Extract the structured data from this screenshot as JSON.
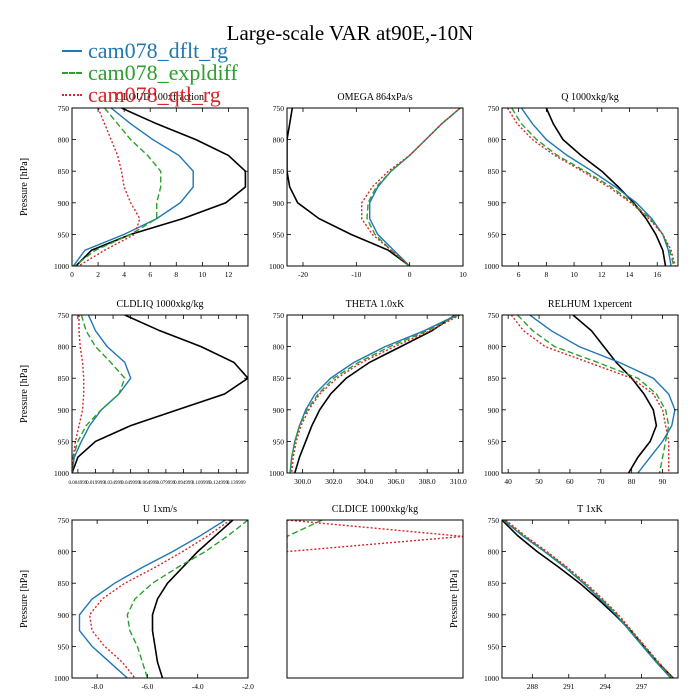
{
  "figure": {
    "title": "Large-scale VAR at90E,-10N"
  },
  "legend": {
    "placement": "top-left",
    "entries": [
      {
        "name": "cam078_dflt_rg",
        "color": "#1f77b4",
        "dash": "solid"
      },
      {
        "name": "cam078_expldiff",
        "color": "#2ca02c",
        "dash": "dashed"
      },
      {
        "name": "cam078_qtl_rg",
        "color": "#d62728",
        "dash": "dotted"
      }
    ]
  },
  "chart_data": [
    {
      "type": "line",
      "title": "CLOUD 100xfraction",
      "ylabel": "Pressure [hPa]",
      "ylim": [
        1000,
        750
      ],
      "yticks": [
        750,
        800,
        850,
        900,
        950,
        1000
      ],
      "xlim": [
        0,
        13.5
      ],
      "xticks": [
        0,
        2,
        4,
        6,
        8,
        10,
        12
      ],
      "xticklabels": [
        "0",
        "2",
        "4",
        "6",
        "8",
        "10",
        "12"
      ],
      "pressure": [
        750,
        775,
        800,
        825,
        850,
        875,
        900,
        925,
        950,
        975,
        1000
      ],
      "series": [
        {
          "color": "#000000",
          "dash": "solid",
          "values": [
            3.8,
            6.5,
            9.5,
            12,
            13.3,
            13.3,
            11.8,
            8.5,
            4.5,
            1.5,
            0.3
          ]
        },
        {
          "color": "#1f77b4",
          "dash": "solid",
          "values": [
            3,
            4.5,
            6.2,
            8.2,
            9.3,
            9.3,
            8.3,
            6.5,
            4,
            1,
            0.1
          ]
        },
        {
          "color": "#2ca02c",
          "dash": "dashed",
          "values": [
            2.5,
            3.5,
            4.5,
            5.8,
            6.8,
            6.8,
            6.5,
            6.5,
            4.5,
            1.8,
            0.2
          ]
        },
        {
          "color": "#d62728",
          "dash": "dotted",
          "values": [
            2,
            2.5,
            3,
            3.5,
            3.8,
            4,
            4.5,
            5.2,
            4.8,
            2.5,
            0.5
          ]
        }
      ],
      "grid": false
    },
    {
      "type": "line",
      "title": "OMEGA  864xPa/s",
      "ylabel": "",
      "ylim": [
        1000,
        750
      ],
      "yticks": [
        750,
        800,
        850,
        900,
        950,
        1000
      ],
      "xlim": [
        -23,
        10
      ],
      "xticks": [
        -20,
        -10,
        0,
        10
      ],
      "xticklabels": [
        "-20",
        "-10",
        "0",
        "10"
      ],
      "pressure": [
        750,
        775,
        800,
        825,
        850,
        875,
        900,
        925,
        950,
        975,
        1000
      ],
      "series": [
        {
          "color": "#000000",
          "dash": "solid",
          "values": [
            -22,
            -22.5,
            -23,
            -23,
            -23,
            -22.5,
            -21,
            -17,
            -11,
            -4,
            0
          ]
        },
        {
          "color": "#1f77b4",
          "dash": "solid",
          "values": [
            9.5,
            6,
            3,
            0,
            -3.5,
            -6,
            -7.5,
            -7.5,
            -6,
            -3,
            0
          ]
        },
        {
          "color": "#2ca02c",
          "dash": "dashed",
          "values": [
            9.5,
            6,
            3,
            0,
            -3.5,
            -6.3,
            -7.8,
            -8,
            -6.5,
            -3.5,
            0
          ]
        },
        {
          "color": "#d62728",
          "dash": "dotted",
          "values": [
            9.5,
            6,
            3,
            0,
            -4,
            -7,
            -9,
            -9,
            -7,
            -3.5,
            0
          ]
        }
      ],
      "grid": false
    },
    {
      "type": "line",
      "title": "Q  1000xkg/kg",
      "ylabel": "",
      "ylim": [
        1000,
        750
      ],
      "yticks": [
        750,
        800,
        850,
        900,
        950,
        1000
      ],
      "xlim": [
        4.8,
        17.5
      ],
      "xticks": [
        6,
        8,
        10,
        12,
        14,
        16
      ],
      "xticklabels": [
        "6",
        "8",
        "10",
        "12",
        "14",
        "16"
      ],
      "pressure": [
        750,
        775,
        800,
        825,
        850,
        875,
        900,
        925,
        950,
        975,
        1000
      ],
      "series": [
        {
          "color": "#000000",
          "dash": "solid",
          "values": [
            8,
            8.5,
            9.2,
            10.5,
            12,
            13.2,
            14.3,
            15.2,
            15.9,
            16.4,
            16.6
          ]
        },
        {
          "color": "#1f77b4",
          "dash": "solid",
          "values": [
            6.2,
            7,
            8,
            9.5,
            11.3,
            13,
            14.5,
            15.6,
            16.4,
            16.8,
            17
          ]
        },
        {
          "color": "#2ca02c",
          "dash": "dashed",
          "values": [
            5.5,
            6.2,
            7.3,
            8.8,
            10.8,
            12.7,
            14.2,
            15.5,
            16.4,
            16.9,
            17.2
          ]
        },
        {
          "color": "#d62728",
          "dash": "dotted",
          "values": [
            5.2,
            5.9,
            7,
            8.6,
            10.6,
            12.5,
            14.1,
            15.4,
            16.4,
            17,
            17.3
          ]
        }
      ],
      "grid": false
    },
    {
      "type": "line",
      "title": "CLDLIQ  1000xkg/kg",
      "ylabel": "Pressure [hPa]",
      "ylim": [
        1000,
        750
      ],
      "yticks": [
        750,
        800,
        850,
        900,
        950,
        1000
      ],
      "xlim": [
        0,
        0.15
      ],
      "xticks": [
        0.005,
        0.02,
        0.035,
        0.05,
        0.065,
        0.08,
        0.095,
        0.11,
        0.125,
        0.14
      ],
      "xticklabels": [
        "0.004999",
        "0.019999",
        "0.034999",
        "0.049999",
        "0.064999",
        "0.079999",
        "0.094999",
        "0.109999",
        "0.124999",
        "0.139999"
      ],
      "pressure": [
        750,
        775,
        800,
        825,
        850,
        875,
        900,
        925,
        950,
        975,
        1000
      ],
      "series": [
        {
          "color": "#000000",
          "dash": "solid",
          "values": [
            0.045,
            0.075,
            0.11,
            0.138,
            0.15,
            0.13,
            0.09,
            0.05,
            0.02,
            0.005,
            0
          ]
        },
        {
          "color": "#1f77b4",
          "dash": "solid",
          "values": [
            0.014,
            0.02,
            0.03,
            0.045,
            0.05,
            0.04,
            0.025,
            0.015,
            0.008,
            0.002,
            0
          ]
        },
        {
          "color": "#2ca02c",
          "dash": "dashed",
          "values": [
            0.008,
            0.012,
            0.02,
            0.033,
            0.045,
            0.04,
            0.025,
            0.012,
            0.005,
            0.001,
            0
          ]
        },
        {
          "color": "#d62728",
          "dash": "dotted",
          "values": [
            0.006,
            0.006,
            0.007,
            0.009,
            0.01,
            0.01,
            0.009,
            0.006,
            0.003,
            0.001,
            0
          ]
        }
      ],
      "grid": false
    },
    {
      "type": "line",
      "title": "THETA  1.0xK",
      "ylabel": "",
      "ylim": [
        1000,
        750
      ],
      "yticks": [
        750,
        800,
        850,
        900,
        950,
        1000
      ],
      "xlim": [
        299,
        310.3
      ],
      "xticks": [
        300,
        302,
        304,
        306,
        308,
        310
      ],
      "xticklabels": [
        "300.0",
        "302.0",
        "304.0",
        "306.0",
        "308.0",
        "310.0"
      ],
      "pressure": [
        750,
        775,
        800,
        825,
        850,
        875,
        900,
        925,
        950,
        975,
        1000
      ],
      "series": [
        {
          "color": "#000000",
          "dash": "solid",
          "values": [
            309.8,
            308.3,
            306.3,
            304.3,
            302.8,
            301.8,
            301.1,
            300.6,
            300.2,
            299.8,
            299.5
          ]
        },
        {
          "color": "#1f77b4",
          "dash": "solid",
          "values": [
            309.9,
            307.8,
            305.3,
            303.3,
            301.8,
            300.8,
            300.2,
            299.8,
            299.5,
            299.3,
            299.2
          ]
        },
        {
          "color": "#2ca02c",
          "dash": "dashed",
          "values": [
            310,
            308,
            305.6,
            303.6,
            302,
            301,
            300.3,
            299.8,
            299.5,
            299.3,
            299.2
          ]
        },
        {
          "color": "#d62728",
          "dash": "dotted",
          "values": [
            310.1,
            308.2,
            305.9,
            303.8,
            302.2,
            301.1,
            300.4,
            299.9,
            299.6,
            299.4,
            299.3
          ]
        }
      ],
      "grid": false
    },
    {
      "type": "line",
      "title": "RELHUM  1xpercent",
      "ylabel": "",
      "ylim": [
        1000,
        750
      ],
      "yticks": [
        750,
        800,
        850,
        900,
        950,
        1000
      ],
      "xlim": [
        38,
        95
      ],
      "xticks": [
        40,
        50,
        60,
        70,
        80,
        90
      ],
      "xticklabels": [
        "40",
        "50",
        "60",
        "70",
        "80",
        "90"
      ],
      "pressure": [
        750,
        775,
        800,
        825,
        850,
        875,
        900,
        925,
        950,
        975,
        1000
      ],
      "series": [
        {
          "color": "#000000",
          "dash": "solid",
          "values": [
            61,
            67,
            71,
            75,
            80,
            84,
            87,
            88,
            86,
            82,
            79
          ]
        },
        {
          "color": "#1f77b4",
          "dash": "solid",
          "values": [
            47,
            54,
            63,
            76,
            87,
            92,
            94,
            93,
            90,
            86,
            82
          ]
        },
        {
          "color": "#2ca02c",
          "dash": "dashed",
          "values": [
            43,
            48,
            55,
            69,
            82,
            88,
            91,
            92,
            91,
            90,
            89
          ]
        },
        {
          "color": "#d62728",
          "dash": "dotted",
          "values": [
            41,
            45,
            52,
            66,
            80,
            87,
            90,
            91,
            92,
            92,
            92
          ]
        }
      ],
      "grid": false
    },
    {
      "type": "line",
      "title": "U  1xm/s",
      "ylabel": "Pressure [hPa]",
      "ylim": [
        1000,
        750
      ],
      "yticks": [
        750,
        800,
        850,
        900,
        950,
        1000
      ],
      "xlim": [
        -9,
        -2
      ],
      "xticks": [
        -8,
        -6,
        -4,
        -2
      ],
      "xticklabels": [
        "-8.0",
        "-6.0",
        "-4.0",
        "-2.0"
      ],
      "pressure": [
        750,
        775,
        800,
        825,
        850,
        875,
        900,
        925,
        950,
        975,
        1000
      ],
      "series": [
        {
          "color": "#000000",
          "dash": "solid",
          "values": [
            -2.6,
            -3.3,
            -4,
            -4.6,
            -5.2,
            -5.6,
            -5.8,
            -5.8,
            -5.7,
            -5.6,
            -5.4
          ]
        },
        {
          "color": "#1f77b4",
          "dash": "solid",
          "values": [
            -2.9,
            -3.9,
            -5,
            -6.2,
            -7.3,
            -8.2,
            -8.7,
            -8.7,
            -8.2,
            -7.5,
            -6.8
          ]
        },
        {
          "color": "#2ca02c",
          "dash": "dashed",
          "values": [
            -2,
            -2.8,
            -3.7,
            -4.8,
            -5.8,
            -6.5,
            -6.8,
            -6.7,
            -6.4,
            -6.2,
            -6
          ]
        },
        {
          "color": "#d62728",
          "dash": "dotted",
          "values": [
            -2.7,
            -3.6,
            -4.6,
            -5.7,
            -6.9,
            -7.8,
            -8.3,
            -8.2,
            -7.7,
            -7,
            -6.5
          ]
        }
      ],
      "grid": false
    },
    {
      "type": "line",
      "title": "CLDICE  1000xkg/kg",
      "ylabel": "",
      "ylim": [
        1000,
        750
      ],
      "yticks": [],
      "xlim": [
        0,
        1
      ],
      "xticks": [],
      "xticklabels": [],
      "pressure": [
        750,
        776,
        800
      ],
      "series": [
        {
          "color": "#2ca02c",
          "dash": "dashed",
          "values": [
            0.2,
            0,
            0
          ]
        },
        {
          "color": "#d62728",
          "dash": "dotted",
          "values": [
            0,
            1,
            0
          ]
        }
      ],
      "grid": false
    },
    {
      "type": "line",
      "title": "T  1xK",
      "ylabel": "Pressure [hPa]",
      "ylim": [
        1000,
        750
      ],
      "yticks": [
        750,
        800,
        850,
        900,
        950,
        1000
      ],
      "xlim": [
        285.5,
        300
      ],
      "xticks": [
        288,
        291,
        294,
        297
      ],
      "xticklabels": [
        "288",
        "291",
        "294",
        "297"
      ],
      "pressure": [
        750,
        775,
        800,
        825,
        850,
        875,
        900,
        925,
        950,
        975,
        1000
      ],
      "series": [
        {
          "color": "#000000",
          "dash": "solid",
          "values": [
            285.5,
            286.8,
            288.4,
            290.2,
            291.9,
            293.4,
            294.8,
            296.1,
            297.2,
            298.3,
            299.6
          ]
        },
        {
          "color": "#1f77b4",
          "dash": "solid",
          "values": [
            285.6,
            287.2,
            289,
            290.7,
            292.2,
            293.6,
            294.9,
            296,
            297.1,
            298.2,
            299.4
          ]
        },
        {
          "color": "#2ca02c",
          "dash": "dashed",
          "values": [
            285.7,
            287.3,
            289.1,
            290.8,
            292.3,
            293.7,
            295,
            296.1,
            297.2,
            298.3,
            299.5
          ]
        },
        {
          "color": "#d62728",
          "dash": "dotted",
          "values": [
            285.8,
            287.4,
            289.2,
            290.9,
            292.4,
            293.8,
            295.1,
            296.2,
            297.3,
            298.4,
            299.6
          ]
        }
      ],
      "grid": false
    }
  ]
}
